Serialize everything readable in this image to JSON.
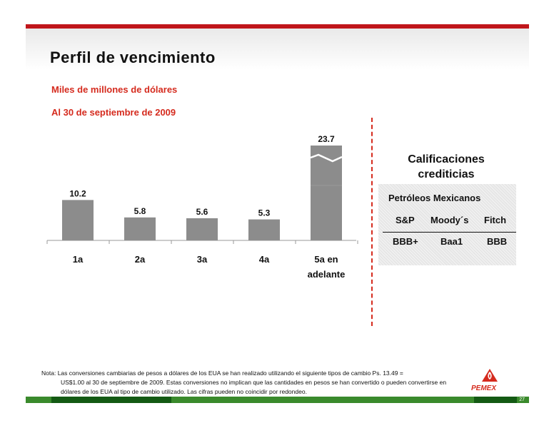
{
  "title": "Perfil de vencimiento",
  "subtitle_units": "Miles de millones de dólares",
  "subtitle_date": "Al 30 de septiembre de 2009",
  "chart_data": {
    "type": "bar",
    "categories": [
      "1a",
      "2a",
      "3a",
      "4a",
      "5a en adelante"
    ],
    "category_lines": [
      [
        "1a"
      ],
      [
        "2a"
      ],
      [
        "3a"
      ],
      [
        "4a"
      ],
      [
        "5a en",
        "adelante"
      ]
    ],
    "values": [
      10.2,
      5.8,
      5.6,
      5.3,
      23.7
    ],
    "value_labels": [
      "10.2",
      "5.8",
      "5.6",
      "5.3",
      "23.7"
    ],
    "axis_break_on_last_bar": true,
    "bar_color": "#8c8c8c",
    "title": "",
    "xlabel": "",
    "ylabel": ""
  },
  "ratings": {
    "title_line1": "Calificaciones",
    "title_line2": "crediticias",
    "issuer": "Petróleos Mexicanos",
    "agencies": [
      "S&P",
      "Moody´s",
      "Fitch"
    ],
    "values": [
      "BBB+",
      "Baa1",
      "BBB"
    ]
  },
  "note": {
    "label": "Nota:",
    "first_line": "Las conversiones cambiarias de pesos a dólares de los EUA se han realizado utilizando el siguiente tipos de cambio Ps. 13.49 =",
    "rest": "US$1.00 al 30 de septiembre de 2009. Estas conversiones no implican que las cantidades en pesos se han convertido o pueden convertirse en dólares de los EUA al tipo de cambio utilizado. Las cifras pueden no coincidir por redondeo."
  },
  "logo_text": "PEMEX",
  "page_number": "27",
  "colors": {
    "accent_red": "#d52b1e",
    "brand_green": "#3a8a2c",
    "dark_green": "#145a14",
    "bar_gray": "#8c8c8c"
  },
  "icons": {
    "logo": "pemex-logo-icon"
  }
}
